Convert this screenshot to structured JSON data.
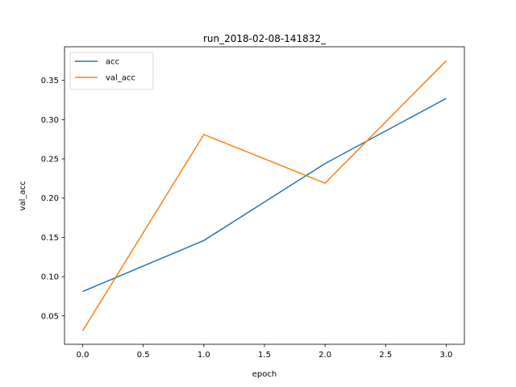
{
  "chart_data": {
    "type": "line",
    "title": "run_2018-02-08-141832_",
    "xlabel": "epoch",
    "ylabel": "val_acc",
    "xlim": [
      -0.15,
      3.15
    ],
    "ylim": [
      0.0138,
      0.3928
    ],
    "xticks": [
      0.0,
      0.5,
      1.0,
      1.5,
      2.0,
      2.5,
      3.0
    ],
    "xtick_labels": [
      "0.0",
      "0.5",
      "1.0",
      "1.5",
      "2.0",
      "2.5",
      "3.0"
    ],
    "yticks": [
      0.05,
      0.1,
      0.15,
      0.2,
      0.25,
      0.3,
      0.35
    ],
    "ytick_labels": [
      "0.05",
      "0.10",
      "0.15",
      "0.20",
      "0.25",
      "0.30",
      "0.35"
    ],
    "grid": false,
    "legend_position": "top-left",
    "x": [
      0,
      1,
      2,
      3
    ],
    "series": [
      {
        "name": "acc",
        "color": "#1f77b4",
        "values": [
          0.081,
          0.146,
          0.244,
          0.327
        ]
      },
      {
        "name": "val_acc",
        "color": "#ff7f0e",
        "values": [
          0.031,
          0.281,
          0.219,
          0.375
        ]
      }
    ]
  }
}
